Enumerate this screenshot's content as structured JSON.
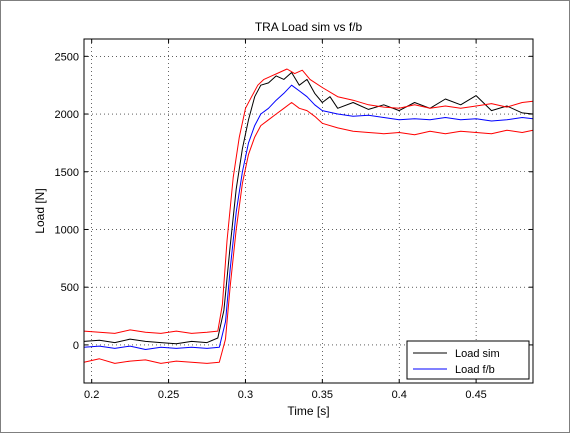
{
  "chart_data": {
    "type": "line",
    "title": "TRA Load sim vs f/b",
    "xlabel": "Time [s]",
    "ylabel": "Load [N]",
    "xlim": [
      0.195,
      0.487
    ],
    "ylim": [
      -330,
      2650
    ],
    "xticks": [
      0.2,
      0.25,
      0.3,
      0.35,
      0.4,
      0.45
    ],
    "xtick_labels": [
      "0.2",
      "0.25",
      "0.3",
      "0.35",
      "0.4",
      "0.45"
    ],
    "yticks": [
      0,
      500,
      1000,
      1500,
      2000,
      2500
    ],
    "ytick_labels": [
      "0",
      "500",
      "1000",
      "1500",
      "2000",
      "2500"
    ],
    "grid": true,
    "legend_position": "bottom-right",
    "legend": [
      "Load sim",
      "Load f/b"
    ],
    "series": [
      {
        "name": "Load sim",
        "color": "#000000",
        "in_legend": true,
        "x": [
          0.195,
          0.205,
          0.215,
          0.225,
          0.235,
          0.245,
          0.255,
          0.265,
          0.275,
          0.282,
          0.286,
          0.29,
          0.294,
          0.298,
          0.302,
          0.306,
          0.31,
          0.315,
          0.32,
          0.325,
          0.33,
          0.335,
          0.34,
          0.345,
          0.35,
          0.355,
          0.36,
          0.37,
          0.38,
          0.39,
          0.4,
          0.41,
          0.42,
          0.43,
          0.44,
          0.45,
          0.46,
          0.47,
          0.48,
          0.487
        ],
        "y": [
          30,
          40,
          20,
          50,
          30,
          20,
          10,
          30,
          20,
          60,
          300,
          850,
          1350,
          1700,
          1950,
          2150,
          2250,
          2270,
          2330,
          2300,
          2360,
          2250,
          2300,
          2180,
          2100,
          2150,
          2050,
          2100,
          2040,
          2080,
          2030,
          2100,
          2050,
          2130,
          2080,
          2160,
          2030,
          2070,
          2010,
          2000
        ]
      },
      {
        "name": "Load f/b",
        "color": "#0000ff",
        "in_legend": true,
        "x": [
          0.195,
          0.205,
          0.215,
          0.225,
          0.235,
          0.245,
          0.255,
          0.265,
          0.275,
          0.283,
          0.287,
          0.29,
          0.294,
          0.298,
          0.302,
          0.306,
          0.31,
          0.315,
          0.32,
          0.325,
          0.33,
          0.335,
          0.34,
          0.345,
          0.35,
          0.36,
          0.37,
          0.38,
          0.39,
          0.4,
          0.41,
          0.42,
          0.43,
          0.44,
          0.45,
          0.46,
          0.47,
          0.48,
          0.487
        ],
        "y": [
          -20,
          -10,
          -30,
          -10,
          -40,
          -20,
          -30,
          -20,
          -30,
          -20,
          200,
          650,
          1150,
          1500,
          1750,
          1900,
          2000,
          2050,
          2120,
          2180,
          2250,
          2200,
          2150,
          2080,
          2030,
          2000,
          1980,
          1990,
          1970,
          1950,
          1960,
          1950,
          1970,
          1950,
          1960,
          1940,
          1950,
          1970,
          1960
        ]
      },
      {
        "name": "Upper bound",
        "color": "#ff0000",
        "in_legend": false,
        "x": [
          0.195,
          0.205,
          0.215,
          0.225,
          0.235,
          0.245,
          0.255,
          0.265,
          0.275,
          0.282,
          0.285,
          0.288,
          0.292,
          0.296,
          0.3,
          0.304,
          0.308,
          0.312,
          0.317,
          0.322,
          0.327,
          0.332,
          0.337,
          0.342,
          0.35,
          0.36,
          0.37,
          0.38,
          0.39,
          0.4,
          0.41,
          0.42,
          0.43,
          0.44,
          0.45,
          0.46,
          0.47,
          0.48,
          0.487
        ],
        "y": [
          120,
          110,
          100,
          130,
          110,
          100,
          120,
          100,
          110,
          120,
          350,
          900,
          1450,
          1800,
          2050,
          2150,
          2250,
          2300,
          2330,
          2360,
          2390,
          2350,
          2380,
          2300,
          2230,
          2150,
          2120,
          2080,
          2060,
          2050,
          2080,
          2050,
          2070,
          2050,
          2070,
          2090,
          2060,
          2100,
          2110
        ]
      },
      {
        "name": "Lower bound",
        "color": "#ff0000",
        "in_legend": false,
        "x": [
          0.195,
          0.205,
          0.215,
          0.225,
          0.235,
          0.245,
          0.255,
          0.265,
          0.275,
          0.283,
          0.287,
          0.29,
          0.294,
          0.298,
          0.302,
          0.306,
          0.31,
          0.315,
          0.32,
          0.325,
          0.33,
          0.335,
          0.34,
          0.345,
          0.35,
          0.36,
          0.37,
          0.38,
          0.39,
          0.4,
          0.41,
          0.42,
          0.43,
          0.44,
          0.45,
          0.46,
          0.47,
          0.48,
          0.487
        ],
        "y": [
          -150,
          -120,
          -160,
          -140,
          -130,
          -160,
          -140,
          -150,
          -160,
          -150,
          50,
          500,
          1000,
          1400,
          1650,
          1800,
          1900,
          1950,
          2000,
          2050,
          2100,
          2050,
          2030,
          1980,
          1920,
          1880,
          1850,
          1840,
          1830,
          1840,
          1820,
          1850,
          1830,
          1850,
          1840,
          1830,
          1860,
          1840,
          1860
        ]
      }
    ]
  }
}
